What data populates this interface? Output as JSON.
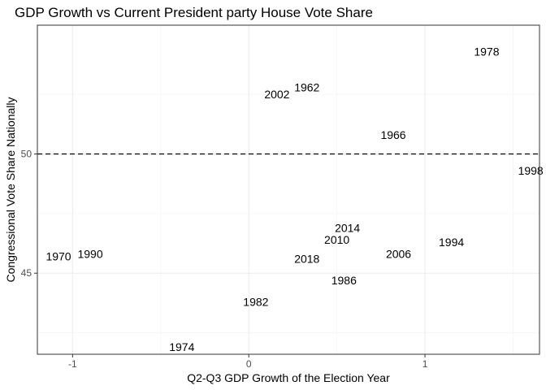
{
  "chart_data": {
    "type": "scatter",
    "title": "GDP Growth vs Current President party House Vote Share",
    "xlabel": "Q2-Q3 GDP Growth of the Election Year",
    "ylabel": "Congressional Vote Share Nationally",
    "xlim": [
      -1.2,
      1.65
    ],
    "ylim": [
      41.6,
      55.4
    ],
    "xticks": [
      -1,
      0,
      1
    ],
    "xtick_labels": [
      "-1",
      "0",
      "1"
    ],
    "yticks": [
      45,
      50
    ],
    "ytick_labels": [
      "45",
      "50"
    ],
    "grid": true,
    "reference_line": {
      "y": 50,
      "style": "dashed",
      "color": "#000000"
    },
    "points": [
      {
        "label": "1970",
        "x": -1.08,
        "y": 45.7
      },
      {
        "label": "1990",
        "x": -0.9,
        "y": 45.8
      },
      {
        "label": "1974",
        "x": -0.38,
        "y": 41.9
      },
      {
        "label": "1982",
        "x": 0.04,
        "y": 43.8
      },
      {
        "label": "2002",
        "x": 0.16,
        "y": 52.5
      },
      {
        "label": "1962",
        "x": 0.33,
        "y": 52.8
      },
      {
        "label": "2018",
        "x": 0.33,
        "y": 45.6
      },
      {
        "label": "2010",
        "x": 0.5,
        "y": 46.4
      },
      {
        "label": "2014",
        "x": 0.56,
        "y": 46.9
      },
      {
        "label": "1986",
        "x": 0.54,
        "y": 44.7
      },
      {
        "label": "1966",
        "x": 0.82,
        "y": 50.8
      },
      {
        "label": "2006",
        "x": 0.85,
        "y": 45.8
      },
      {
        "label": "1994",
        "x": 1.15,
        "y": 46.3
      },
      {
        "label": "1978",
        "x": 1.35,
        "y": 54.3
      },
      {
        "label": "1998",
        "x": 1.6,
        "y": 49.3
      }
    ]
  }
}
